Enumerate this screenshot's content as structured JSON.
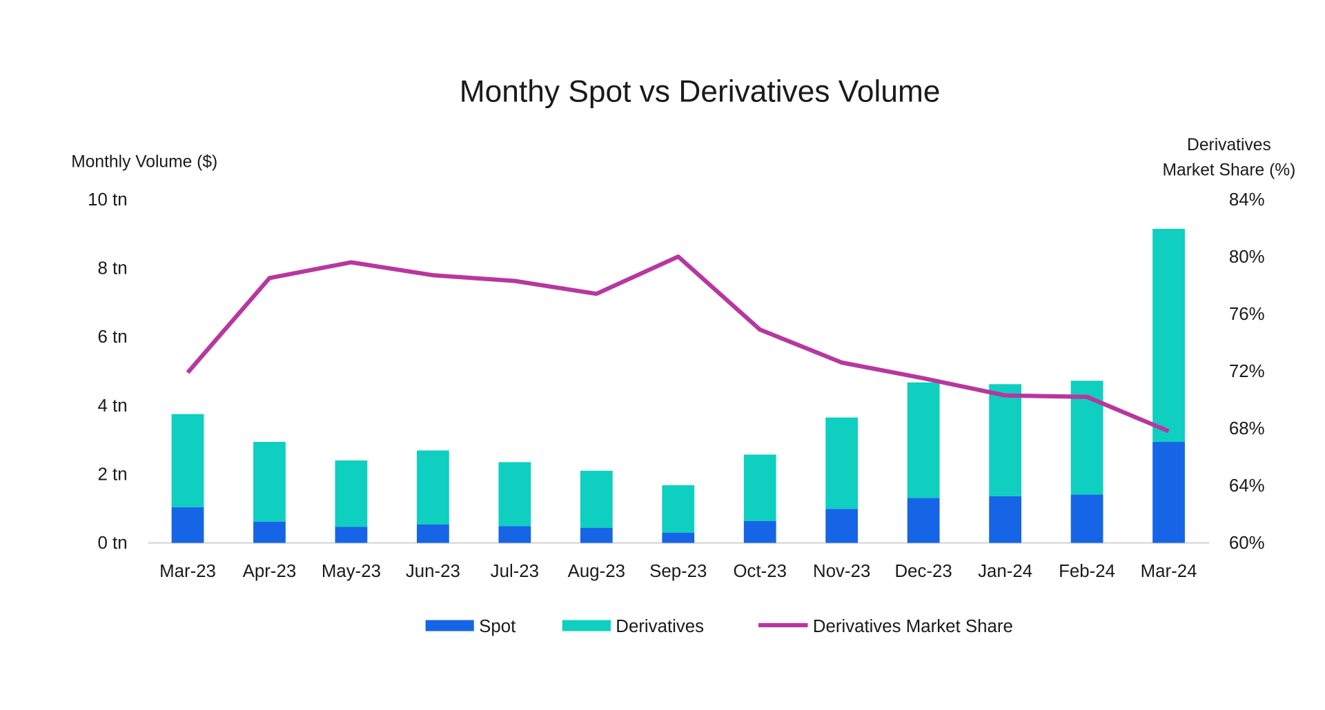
{
  "chart_data": {
    "type": "bar",
    "stacked": true,
    "title": "Monthy Spot vs Derivatives Volume",
    "ylabel": "Monthly Volume ($)",
    "y2label_lines": [
      "Derivatives",
      "Market Share (%)"
    ],
    "ylim": [
      0,
      10
    ],
    "y2lim": [
      60,
      84
    ],
    "yticks": [
      "0 tn",
      "2 tn",
      "4 tn",
      "6 tn",
      "8 tn",
      "10 tn"
    ],
    "y2ticks": [
      "60%",
      "64%",
      "68%",
      "72%",
      "76%",
      "80%",
      "84%"
    ],
    "grid": false,
    "legend_position": "bottom",
    "categories": [
      "Mar-23",
      "Apr-23",
      "May-23",
      "Jun-23",
      "Jul-23",
      "Aug-23",
      "Sep-23",
      "Oct-23",
      "Nov-23",
      "Dec-23",
      "Jan-24",
      "Feb-24",
      "Mar-24"
    ],
    "series": [
      {
        "name": "Spot",
        "type": "bar",
        "axis": "left",
        "unit": "tn",
        "color": "#1565e6",
        "values": [
          1.04,
          0.62,
          0.47,
          0.54,
          0.49,
          0.44,
          0.3,
          0.64,
          0.99,
          1.31,
          1.36,
          1.41,
          2.94
        ]
      },
      {
        "name": "Derivatives",
        "type": "bar",
        "axis": "left",
        "unit": "tn",
        "color": "#0ecfc0",
        "values": [
          2.71,
          2.32,
          1.93,
          2.15,
          1.86,
          1.66,
          1.38,
          1.93,
          2.66,
          3.36,
          3.26,
          3.31,
          6.2
        ]
      },
      {
        "name": "Derivatives Market Share",
        "type": "line",
        "axis": "right",
        "unit": "%",
        "color": "#b8379f",
        "values": [
          71.9,
          78.5,
          79.6,
          78.7,
          78.3,
          77.4,
          80.0,
          74.9,
          72.6,
          71.5,
          70.3,
          70.2,
          67.8
        ]
      }
    ]
  }
}
